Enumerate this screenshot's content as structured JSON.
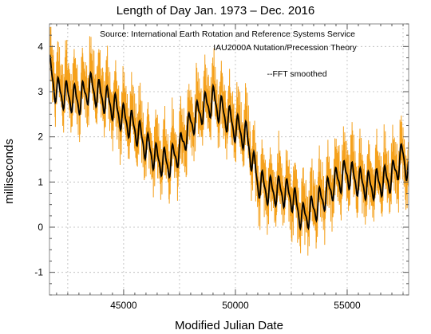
{
  "chart_data": {
    "type": "line",
    "title": "Length of Day    Jan. 1973 – Dec. 2016",
    "xlabel": "Modified Julian Date",
    "ylabel": "milliseconds",
    "xlim": [
      41683,
      57750
    ],
    "ylim": [
      -1.5,
      4.5
    ],
    "xticks": [
      45000,
      50000,
      55000
    ],
    "xtick_labels": [
      "45000",
      "50000",
      "55000"
    ],
    "yticks": [
      -1,
      0,
      1,
      2,
      3,
      4
    ],
    "ytick_labels": [
      "-1",
      "0",
      "1",
      "2",
      "3",
      "4"
    ],
    "grid": true,
    "annotations": [
      "Source: International Earth Rotation and Reference Systems Service",
      "IAU2000A Nutation/Precession Theory",
      "--FFT smoothed"
    ],
    "series": [
      {
        "name": "",
        "style": "raw daily LOD (orange, noisy)",
        "color": "#f5a11c",
        "x": [
          41683,
          42000,
          42500,
          43000,
          43500,
          44000,
          44500,
          45000,
          45500,
          46000,
          46500,
          47000,
          47500,
          48000,
          48500,
          49000,
          49500,
          50000,
          50500,
          51000,
          51500,
          52000,
          52500,
          53000,
          53500,
          54000,
          54500,
          55000,
          55500,
          56000,
          56500,
          57000,
          57500,
          57750
        ],
        "y": [
          3.6,
          3.2,
          3.1,
          3.0,
          3.2,
          3.0,
          2.8,
          2.5,
          2.3,
          1.9,
          1.6,
          1.5,
          1.8,
          2.4,
          2.7,
          2.9,
          2.6,
          2.3,
          2.1,
          1.1,
          0.9,
          0.9,
          0.8,
          0.3,
          0.5,
          0.8,
          1.1,
          1.3,
          1.1,
          1.0,
          1.1,
          1.2,
          1.6,
          1.3
        ]
      },
      {
        "name": "FFT smoothed",
        "style": "black smoothed line",
        "color": "#000000",
        "x": [
          41683,
          42000,
          42500,
          43000,
          43500,
          44000,
          44500,
          45000,
          45500,
          46000,
          46500,
          47000,
          47500,
          48000,
          48500,
          49000,
          49500,
          50000,
          50500,
          51000,
          51500,
          52000,
          52500,
          53000,
          53500,
          54000,
          54500,
          55000,
          55500,
          56000,
          56500,
          57000,
          57500,
          57750
        ],
        "y": [
          3.5,
          3.0,
          2.9,
          2.8,
          3.1,
          2.9,
          2.7,
          2.4,
          2.2,
          1.8,
          1.5,
          1.4,
          1.7,
          2.3,
          2.6,
          2.8,
          2.5,
          2.2,
          2.0,
          1.0,
          0.8,
          0.8,
          0.7,
          0.2,
          0.4,
          0.7,
          1.0,
          1.2,
          1.0,
          0.9,
          1.0,
          1.1,
          1.6,
          1.2
        ]
      }
    ]
  }
}
